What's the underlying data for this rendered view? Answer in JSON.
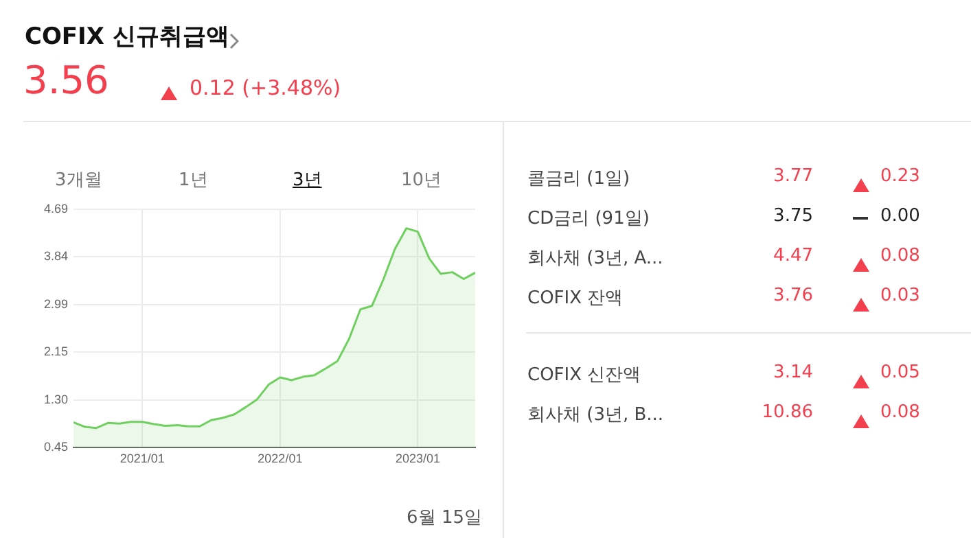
{
  "chart_data": {
    "type": "area",
    "title": "COFIX 신규취급액",
    "subtitle": "3.56",
    "annotations": [
      "0.12 (+3.48%)",
      "3개월",
      "1년",
      "3년",
      "10년",
      "6월 15일",
      "콜금리 (1일)",
      "3.77",
      "0.23",
      "CD금리 (91일)",
      "3.75",
      "0.00",
      "회사채 (3년, A...",
      "4.47",
      "0.08",
      "COFIX 잔액",
      "3.76",
      "0.03",
      "COFIX 신잔액",
      "3.14",
      "0.05",
      "회사채 (3년, B...",
      "10.86",
      "0.08"
    ],
    "x": [
      "2020-07",
      "2020-08",
      "2020-09",
      "2020-10",
      "2020-11",
      "2020-12",
      "2021-01",
      "2021-02",
      "2021-03",
      "2021-04",
      "2021-05",
      "2021-06",
      "2021-07",
      "2021-08",
      "2021-09",
      "2021-10",
      "2021-11",
      "2021-12",
      "2022-01",
      "2022-02",
      "2022-03",
      "2022-04",
      "2022-05",
      "2022-06",
      "2022-07",
      "2022-08",
      "2022-09",
      "2022-10",
      "2022-11",
      "2022-12",
      "2023-01",
      "2023-02",
      "2023-03",
      "2023-04",
      "2023-05",
      "2023-06"
    ],
    "values": [
      0.9,
      0.82,
      0.8,
      0.89,
      0.88,
      0.91,
      0.91,
      0.87,
      0.84,
      0.85,
      0.83,
      0.83,
      0.94,
      0.98,
      1.04,
      1.17,
      1.31,
      1.57,
      1.7,
      1.65,
      1.71,
      1.74,
      1.86,
      1.99,
      2.38,
      2.91,
      2.97,
      3.44,
      3.98,
      4.35,
      4.29,
      3.81,
      3.54,
      3.57,
      3.45,
      3.56
    ],
    "color": "#6fcf5f",
    "xlim": [
      "2020-07",
      "2023-06"
    ],
    "xticks": [
      {
        "value": "2021-01",
        "label": "2021/01"
      },
      {
        "value": "2022-01",
        "label": "2022/01"
      },
      {
        "value": "2023-01",
        "label": "2023/01"
      }
    ],
    "ylim": [
      0.45,
      4.69
    ],
    "yticks": [
      0.45,
      {
        "value": 1.3,
        "label": "1.30"
      },
      2.15,
      2.99,
      3.84,
      4.69
    ],
    "grid": true,
    "legend": false,
    "marker": "none"
  }
}
